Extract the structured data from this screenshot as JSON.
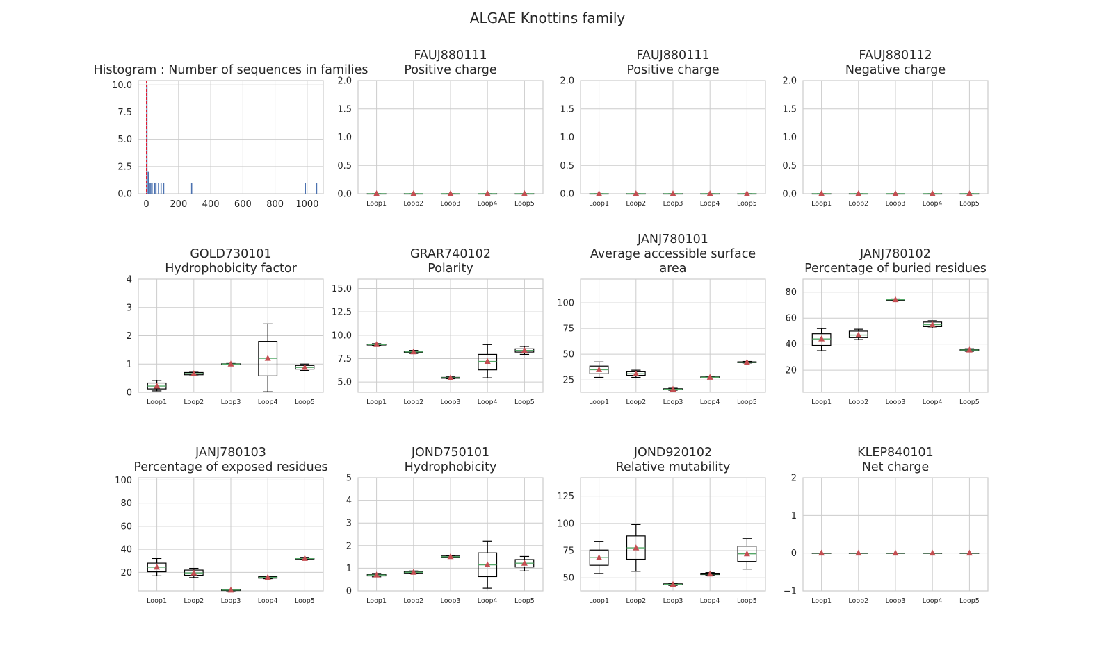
{
  "figure": {
    "title": "ALGAE Knottins family"
  },
  "colors": {
    "grid": "#cccccc",
    "axes": "#cccccc",
    "text": "#262626",
    "hist_bar": "#4c72b0",
    "hist_line": "#e3132b",
    "box": "#000000",
    "median": "#55a868",
    "mean": "#c44e52"
  },
  "chart_data": [
    {
      "type": "bar",
      "title_lines": [
        "Histogram : Number of sequences in families"
      ],
      "xlim": [
        -50,
        1100
      ],
      "ylim": [
        0,
        10.4
      ],
      "xticks": [
        0,
        200,
        400,
        600,
        800,
        1000
      ],
      "yticks": [
        0.0,
        2.5,
        5.0,
        7.5,
        10.0
      ],
      "ytick_labels": [
        "0.0",
        "2.5",
        "5.0",
        "7.5",
        "10.0"
      ],
      "bin_width": 8,
      "bins": [
        {
          "x": 0,
          "count": 10
        },
        {
          "x": 8,
          "count": 2
        },
        {
          "x": 16,
          "count": 1
        },
        {
          "x": 24,
          "count": 1
        },
        {
          "x": 32,
          "count": 1
        },
        {
          "x": 48,
          "count": 1
        },
        {
          "x": 56,
          "count": 1
        },
        {
          "x": 72,
          "count": 1
        },
        {
          "x": 88,
          "count": 1
        },
        {
          "x": 104,
          "count": 1
        },
        {
          "x": 278,
          "count": 1
        },
        {
          "x": 985,
          "count": 1
        },
        {
          "x": 1055,
          "count": 1
        }
      ],
      "vline_x": 1
    },
    {
      "type": "box",
      "title_lines": [
        "FAUJ880111",
        "Positive charge"
      ],
      "categories": [
        "Loop1",
        "Loop2",
        "Loop3",
        "Loop4",
        "Loop5"
      ],
      "ylim": [
        0,
        2
      ],
      "yticks": [
        0,
        0.5,
        1,
        1.5,
        2
      ],
      "ytick_labels": [
        "0.0",
        "0.5",
        "1.0",
        "1.5",
        "2.0"
      ],
      "boxes": [
        {
          "whislo": 0,
          "q1": 0,
          "med": 0,
          "q3": 0,
          "whishi": 0,
          "mean": 0
        },
        {
          "whislo": 0,
          "q1": 0,
          "med": 0,
          "q3": 0,
          "whishi": 0,
          "mean": 0
        },
        {
          "whislo": 0,
          "q1": 0,
          "med": 0,
          "q3": 0,
          "whishi": 0,
          "mean": 0
        },
        {
          "whislo": 0,
          "q1": 0,
          "med": 0,
          "q3": 0,
          "whishi": 0,
          "mean": 0
        },
        {
          "whislo": 0,
          "q1": 0,
          "med": 0,
          "q3": 0,
          "whishi": 0,
          "mean": 0
        }
      ]
    },
    {
      "type": "box",
      "title_lines": [
        "FAUJ880111",
        "Positive charge"
      ],
      "categories": [
        "Loop1",
        "Loop2",
        "Loop3",
        "Loop4",
        "Loop5"
      ],
      "ylim": [
        0,
        2
      ],
      "yticks": [
        0,
        0.5,
        1,
        1.5,
        2
      ],
      "ytick_labels": [
        "0.0",
        "0.5",
        "1.0",
        "1.5",
        "2.0"
      ],
      "boxes": [
        {
          "whislo": 0,
          "q1": 0,
          "med": 0,
          "q3": 0,
          "whishi": 0,
          "mean": 0
        },
        {
          "whislo": 0,
          "q1": 0,
          "med": 0,
          "q3": 0,
          "whishi": 0,
          "mean": 0
        },
        {
          "whislo": 0,
          "q1": 0,
          "med": 0,
          "q3": 0,
          "whishi": 0,
          "mean": 0
        },
        {
          "whislo": 0,
          "q1": 0,
          "med": 0,
          "q3": 0,
          "whishi": 0,
          "mean": 0
        },
        {
          "whislo": 0,
          "q1": 0,
          "med": 0,
          "q3": 0,
          "whishi": 0,
          "mean": 0
        }
      ]
    },
    {
      "type": "box",
      "title_lines": [
        "FAUJ880112",
        "Negative charge"
      ],
      "categories": [
        "Loop1",
        "Loop2",
        "Loop3",
        "Loop4",
        "Loop5"
      ],
      "ylim": [
        0,
        2
      ],
      "yticks": [
        0,
        0.5,
        1,
        1.5,
        2
      ],
      "ytick_labels": [
        "0.0",
        "0.5",
        "1.0",
        "1.5",
        "2.0"
      ],
      "boxes": [
        {
          "whislo": 0,
          "q1": 0,
          "med": 0,
          "q3": 0,
          "whishi": 0,
          "mean": 0
        },
        {
          "whislo": 0,
          "q1": 0,
          "med": 0,
          "q3": 0,
          "whishi": 0,
          "mean": 0
        },
        {
          "whislo": 0,
          "q1": 0,
          "med": 0,
          "q3": 0,
          "whishi": 0,
          "mean": 0
        },
        {
          "whislo": 0,
          "q1": 0,
          "med": 0,
          "q3": 0,
          "whishi": 0,
          "mean": 0
        },
        {
          "whislo": 0,
          "q1": 0,
          "med": 0,
          "q3": 0,
          "whishi": 0,
          "mean": 0
        }
      ]
    },
    {
      "type": "box",
      "title_lines": [
        "GOLD730101",
        "Hydrophobicity factor"
      ],
      "categories": [
        "Loop1",
        "Loop2",
        "Loop3",
        "Loop4",
        "Loop5"
      ],
      "ylim": [
        0,
        4
      ],
      "yticks": [
        0,
        1,
        2,
        3,
        4
      ],
      "ytick_labels": [
        "0",
        "1",
        "2",
        "3",
        "4"
      ],
      "boxes": [
        {
          "whislo": 0.05,
          "q1": 0.12,
          "med": 0.22,
          "q3": 0.33,
          "whishi": 0.42,
          "mean": 0.22
        },
        {
          "whislo": 0.58,
          "q1": 0.62,
          "med": 0.66,
          "q3": 0.7,
          "whishi": 0.74,
          "mean": 0.66
        },
        {
          "whislo": 0.98,
          "q1": 0.99,
          "med": 1.0,
          "q3": 1.01,
          "whishi": 1.02,
          "mean": 1.0
        },
        {
          "whislo": 0.02,
          "q1": 0.58,
          "med": 1.2,
          "q3": 1.8,
          "whishi": 2.42,
          "mean": 1.2
        },
        {
          "whislo": 0.77,
          "q1": 0.82,
          "med": 0.88,
          "q3": 0.95,
          "whishi": 1.0,
          "mean": 0.88
        }
      ]
    },
    {
      "type": "box",
      "title_lines": [
        "GRAR740102",
        "Polarity"
      ],
      "categories": [
        "Loop1",
        "Loop2",
        "Loop3",
        "Loop4",
        "Loop5"
      ],
      "ylim": [
        3.9,
        16
      ],
      "yticks": [
        5,
        7.5,
        10,
        12.5,
        15
      ],
      "ytick_labels": [
        "5.0",
        "7.5",
        "10.0",
        "12.5",
        "15.0"
      ],
      "boxes": [
        {
          "whislo": 8.9,
          "q1": 8.95,
          "med": 9.0,
          "q3": 9.05,
          "whishi": 9.1,
          "mean": 9.0
        },
        {
          "whislo": 8.05,
          "q1": 8.15,
          "med": 8.22,
          "q3": 8.3,
          "whishi": 8.38,
          "mean": 8.22
        },
        {
          "whislo": 5.35,
          "q1": 5.4,
          "med": 5.45,
          "q3": 5.5,
          "whishi": 5.55,
          "mean": 5.45
        },
        {
          "whislo": 5.45,
          "q1": 6.3,
          "med": 7.2,
          "q3": 7.95,
          "whishi": 9.0,
          "mean": 7.2
        },
        {
          "whislo": 7.95,
          "q1": 8.2,
          "med": 8.38,
          "q3": 8.55,
          "whishi": 8.8,
          "mean": 8.38
        }
      ]
    },
    {
      "type": "box",
      "title_lines": [
        "JANJ780101",
        "Average accessible surface",
        "area"
      ],
      "categories": [
        "Loop1",
        "Loop2",
        "Loop3",
        "Loop4",
        "Loop5"
      ],
      "ylim": [
        13,
        123
      ],
      "yticks": [
        25,
        50,
        75,
        100
      ],
      "ytick_labels": [
        "25",
        "50",
        "75",
        "100"
      ],
      "boxes": [
        {
          "whislo": 27.5,
          "q1": 31.0,
          "med": 35.0,
          "q3": 38.5,
          "whishi": 42.5,
          "mean": 35.0
        },
        {
          "whislo": 27.5,
          "q1": 29.5,
          "med": 31.0,
          "q3": 33.0,
          "whishi": 34.5,
          "mean": 31.0
        },
        {
          "whislo": 15.0,
          "q1": 15.5,
          "med": 16.0,
          "q3": 16.5,
          "whishi": 17.0,
          "mean": 16.0
        },
        {
          "whislo": 27.0,
          "q1": 27.3,
          "med": 27.6,
          "q3": 28.0,
          "whishi": 28.3,
          "mean": 27.6
        },
        {
          "whislo": 41.5,
          "q1": 41.8,
          "med": 42.2,
          "q3": 42.6,
          "whishi": 43.0,
          "mean": 42.2
        }
      ]
    },
    {
      "type": "box",
      "title_lines": [
        "JANJ780102",
        "Percentage of buried residues"
      ],
      "categories": [
        "Loop1",
        "Loop2",
        "Loop3",
        "Loop4",
        "Loop5"
      ],
      "ylim": [
        3,
        90
      ],
      "yticks": [
        20,
        40,
        60,
        80
      ],
      "ytick_labels": [
        "20",
        "40",
        "60",
        "80"
      ],
      "boxes": [
        {
          "whislo": 35.0,
          "q1": 39.0,
          "med": 44.0,
          "q3": 48.0,
          "whishi": 52.0,
          "mean": 44.0
        },
        {
          "whislo": 43.5,
          "q1": 45.0,
          "med": 47.0,
          "q3": 50.0,
          "whishi": 51.5,
          "mean": 47.0
        },
        {
          "whislo": 73.5,
          "q1": 73.8,
          "med": 74.2,
          "q3": 74.6,
          "whishi": 74.8,
          "mean": 74.2
        },
        {
          "whislo": 52.5,
          "q1": 53.5,
          "med": 55.0,
          "q3": 57.0,
          "whishi": 58.0,
          "mean": 55.0
        },
        {
          "whislo": 34.5,
          "q1": 35.0,
          "med": 35.5,
          "q3": 36.0,
          "whishi": 36.5,
          "mean": 35.5
        }
      ]
    },
    {
      "type": "box",
      "title_lines": [
        "JANJ780103",
        "Percentage of exposed residues"
      ],
      "categories": [
        "Loop1",
        "Loop2",
        "Loop3",
        "Loop4",
        "Loop5"
      ],
      "ylim": [
        4,
        102
      ],
      "yticks": [
        20,
        40,
        60,
        80,
        100
      ],
      "ytick_labels": [
        "20",
        "40",
        "60",
        "80",
        "100"
      ],
      "boxes": [
        {
          "whislo": 17.0,
          "q1": 20.5,
          "med": 24.5,
          "q3": 28.0,
          "whishi": 32.0,
          "mean": 24.5
        },
        {
          "whislo": 15.5,
          "q1": 17.5,
          "med": 19.5,
          "q3": 22.0,
          "whishi": 23.5,
          "mean": 19.5
        },
        {
          "whislo": 4.0,
          "q1": 4.3,
          "med": 4.7,
          "q3": 5.0,
          "whishi": 5.3,
          "mean": 4.7
        },
        {
          "whislo": 14.5,
          "q1": 15.0,
          "med": 15.7,
          "q3": 16.3,
          "whishi": 16.8,
          "mean": 15.7
        },
        {
          "whislo": 31.0,
          "q1": 31.5,
          "med": 32.0,
          "q3": 32.5,
          "whishi": 33.0,
          "mean": 32.0
        }
      ]
    },
    {
      "type": "box",
      "title_lines": [
        "JOND750101",
        "Hydrophobicity"
      ],
      "categories": [
        "Loop1",
        "Loop2",
        "Loop3",
        "Loop4",
        "Loop5"
      ],
      "ylim": [
        0,
        5
      ],
      "yticks": [
        0,
        1,
        2,
        3,
        4,
        5
      ],
      "ytick_labels": [
        "0",
        "1",
        "2",
        "3",
        "4",
        "5"
      ],
      "boxes": [
        {
          "whislo": 0.62,
          "q1": 0.66,
          "med": 0.7,
          "q3": 0.74,
          "whishi": 0.77,
          "mean": 0.7
        },
        {
          "whislo": 0.76,
          "q1": 0.79,
          "med": 0.82,
          "q3": 0.86,
          "whishi": 0.88,
          "mean": 0.82
        },
        {
          "whislo": 1.46,
          "q1": 1.48,
          "med": 1.51,
          "q3": 1.54,
          "whishi": 1.56,
          "mean": 1.51
        },
        {
          "whislo": 0.12,
          "q1": 0.63,
          "med": 1.15,
          "q3": 1.68,
          "whishi": 2.2,
          "mean": 1.15
        },
        {
          "whislo": 0.88,
          "q1": 1.05,
          "med": 1.22,
          "q3": 1.38,
          "whishi": 1.52,
          "mean": 1.22
        }
      ]
    },
    {
      "type": "box",
      "title_lines": [
        "JOND920102",
        "Relative mutability"
      ],
      "categories": [
        "Loop1",
        "Loop2",
        "Loop3",
        "Loop4",
        "Loop5"
      ],
      "ylim": [
        38,
        142
      ],
      "yticks": [
        50,
        75,
        100,
        125
      ],
      "ytick_labels": [
        "50",
        "75",
        "100",
        "125"
      ],
      "boxes": [
        {
          "whislo": 54.0,
          "q1": 61.5,
          "med": 68.5,
          "q3": 75.5,
          "whishi": 83.5,
          "mean": 68.5
        },
        {
          "whislo": 56.0,
          "q1": 67.0,
          "med": 77.5,
          "q3": 88.5,
          "whishi": 99.0,
          "mean": 77.5
        },
        {
          "whislo": 43.0,
          "q1": 43.5,
          "med": 44.0,
          "q3": 44.5,
          "whishi": 45.0,
          "mean": 44.0
        },
        {
          "whislo": 52.5,
          "q1": 53.0,
          "med": 53.5,
          "q3": 54.2,
          "whishi": 54.8,
          "mean": 53.5
        },
        {
          "whislo": 58.0,
          "q1": 65.0,
          "med": 72.0,
          "q3": 79.0,
          "whishi": 86.0,
          "mean": 72.0
        }
      ]
    },
    {
      "type": "box",
      "title_lines": [
        "KLEP840101",
        "Net charge"
      ],
      "categories": [
        "Loop1",
        "Loop2",
        "Loop3",
        "Loop4",
        "Loop5"
      ],
      "ylim": [
        -1,
        2
      ],
      "yticks": [
        -1,
        0,
        1,
        2
      ],
      "ytick_labels": [
        "−1",
        "0",
        "1",
        "2"
      ],
      "boxes": [
        {
          "whislo": 0,
          "q1": 0,
          "med": 0,
          "q3": 0,
          "whishi": 0,
          "mean": 0
        },
        {
          "whislo": 0,
          "q1": 0,
          "med": 0,
          "q3": 0,
          "whishi": 0,
          "mean": 0
        },
        {
          "whislo": 0,
          "q1": 0,
          "med": 0,
          "q3": 0,
          "whishi": 0,
          "mean": 0
        },
        {
          "whislo": 0,
          "q1": 0,
          "med": 0,
          "q3": 0,
          "whishi": 0,
          "mean": 0
        },
        {
          "whislo": 0,
          "q1": 0,
          "med": 0,
          "q3": 0,
          "whishi": 0,
          "mean": 0
        }
      ]
    }
  ]
}
